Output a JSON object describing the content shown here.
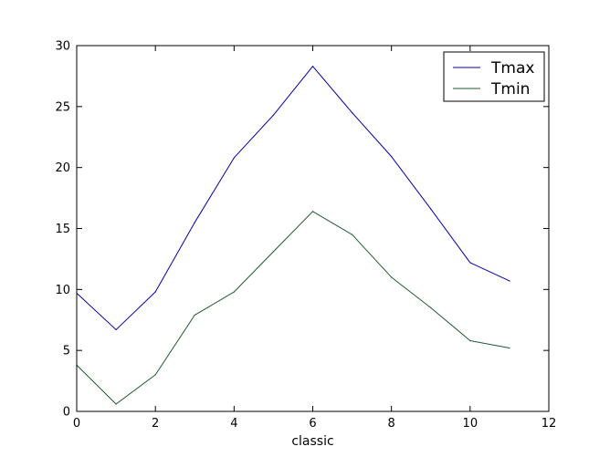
{
  "chart_data": {
    "type": "line",
    "title": "",
    "xlabel": "classic",
    "ylabel": "",
    "xlim": [
      0,
      12
    ],
    "ylim": [
      0,
      30
    ],
    "xticks": [
      0,
      2,
      4,
      6,
      8,
      10,
      12
    ],
    "yticks": [
      0,
      5,
      10,
      15,
      20,
      25,
      30
    ],
    "x": [
      0,
      1,
      2,
      3,
      4,
      5,
      6,
      7,
      8,
      9,
      10,
      11
    ],
    "series": [
      {
        "name": "Tmax",
        "color": "#0000aa",
        "values": [
          9.7,
          6.7,
          9.8,
          15.5,
          20.8,
          24.3,
          28.3,
          24.5,
          20.9,
          16.6,
          12.2,
          10.7
        ]
      },
      {
        "name": "Tmin",
        "color": "#1f5a2e",
        "values": [
          3.8,
          0.6,
          3.0,
          7.9,
          9.8,
          13.1,
          16.4,
          14.5,
          11.0,
          8.5,
          5.8,
          5.2
        ]
      }
    ],
    "grid": false,
    "legend_position": "top-right"
  }
}
